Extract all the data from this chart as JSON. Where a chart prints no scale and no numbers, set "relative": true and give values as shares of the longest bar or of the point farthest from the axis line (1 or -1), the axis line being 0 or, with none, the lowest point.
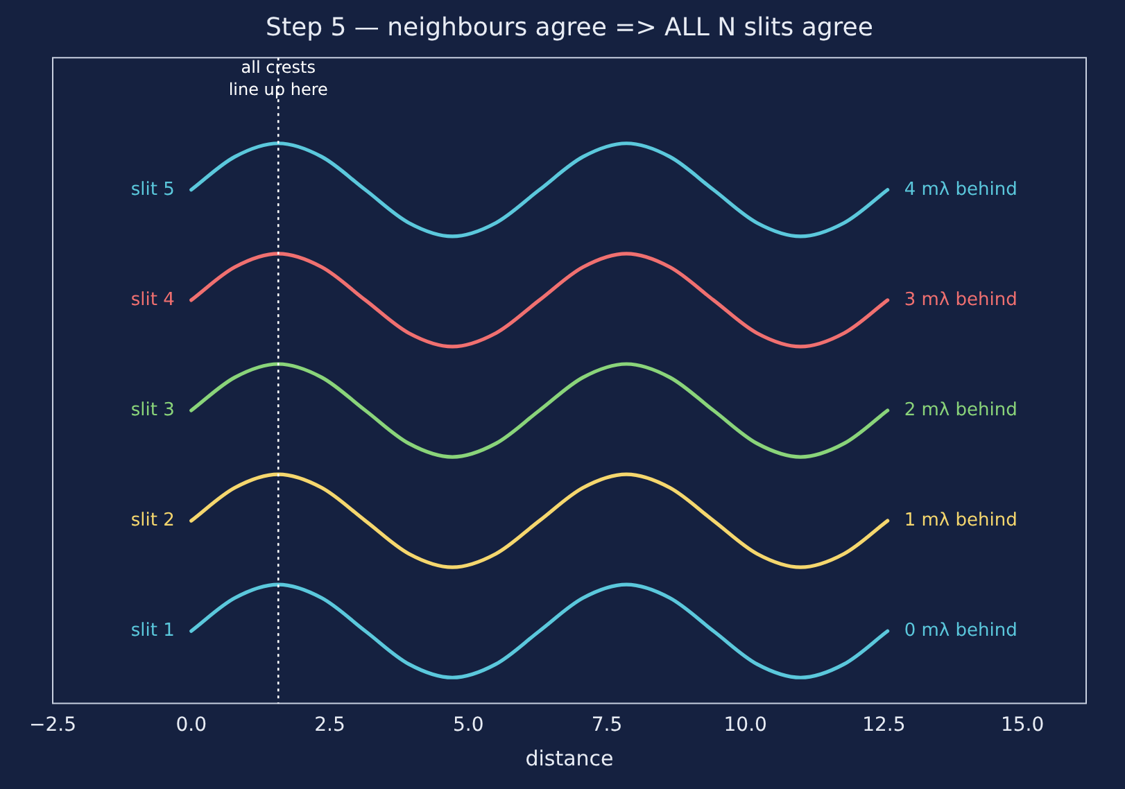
{
  "chart_data": {
    "type": "line",
    "title": "Step 5 — neighbours agree => ALL N slits agree",
    "xlabel": "distance",
    "relative": true,
    "tick_labels": "x",
    "grid": false,
    "legend": false,
    "marker": "none",
    "line_style": "solid",
    "x": [
      0,
      0.785,
      1.571,
      2.356,
      3.142,
      3.927,
      4.712,
      5.498,
      6.283,
      7.069,
      7.854,
      8.639,
      9.425,
      10.21,
      10.996,
      11.781,
      12.566
    ],
    "xlim": [
      -2.5,
      16.15
    ],
    "xticks": [
      {
        "value": -2.5,
        "label": "−2.5"
      },
      {
        "value": 0,
        "label": "0.0"
      },
      {
        "value": 2.5,
        "label": "2.5"
      },
      {
        "value": 5,
        "label": "5.0"
      },
      {
        "value": 7.5,
        "label": "7.5"
      },
      {
        "value": 10,
        "label": "10.0"
      },
      {
        "value": 12.5,
        "label": "12.5"
      },
      {
        "value": 15,
        "label": "15.0"
      }
    ],
    "series": [
      {
        "name": "slit 1",
        "color": "#5bc8dc",
        "values": [
          0.129,
          0.188,
          0.212,
          0.188,
          0.129,
          0.07,
          0.046,
          0.07,
          0.129,
          0.188,
          0.212,
          0.188,
          0.129,
          0.07,
          0.046,
          0.07,
          0.129
        ]
      },
      {
        "name": "slit 2",
        "color": "#f5d76e",
        "values": [
          0.326,
          0.385,
          0.409,
          0.385,
          0.326,
          0.267,
          0.243,
          0.267,
          0.326,
          0.385,
          0.409,
          0.385,
          0.326,
          0.267,
          0.243,
          0.267,
          0.326
        ]
      },
      {
        "name": "slit 3",
        "color": "#8ad47a",
        "values": [
          0.523,
          0.582,
          0.606,
          0.582,
          0.523,
          0.464,
          0.44,
          0.464,
          0.523,
          0.582,
          0.606,
          0.582,
          0.523,
          0.464,
          0.44,
          0.464,
          0.523
        ]
      },
      {
        "name": "slit 4",
        "color": "#f07070",
        "values": [
          0.72,
          0.779,
          0.803,
          0.779,
          0.72,
          0.661,
          0.637,
          0.661,
          0.72,
          0.779,
          0.803,
          0.779,
          0.72,
          0.661,
          0.637,
          0.661,
          0.72
        ]
      },
      {
        "name": "slit 5",
        "color": "#5bc8dc",
        "values": [
          0.917,
          0.976,
          1,
          0.976,
          0.917,
          0.858,
          0.834,
          0.858,
          0.917,
          0.976,
          1,
          0.976,
          0.917,
          0.858,
          0.834,
          0.858,
          0.917
        ]
      }
    ],
    "annotations": [
      "0 mλ behind",
      "1 mλ behind",
      "2 mλ behind",
      "3 mλ behind",
      "4 mλ behind"
    ],
    "ref_lines": [
      {
        "axis": "x",
        "value": 1.571,
        "label": "all crests\nline up here",
        "color": "#ffffff",
        "line_style": "dotted"
      }
    ]
  }
}
